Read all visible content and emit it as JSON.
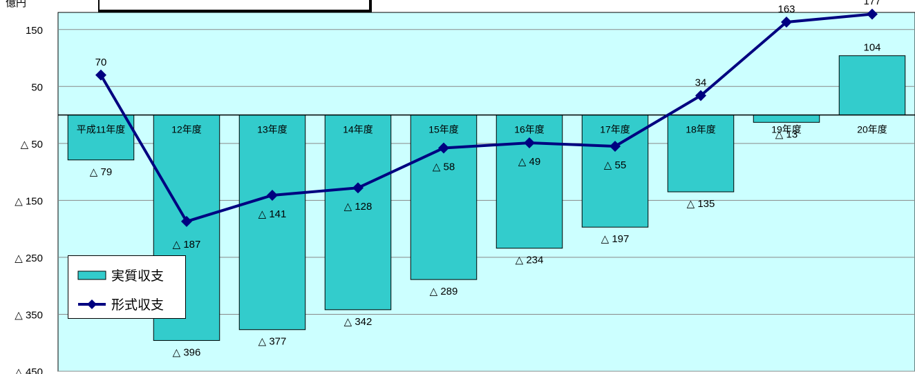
{
  "unit_label": "億円",
  "chart_data": {
    "type": "bar+line",
    "categories": [
      "平成11年度",
      "12年度",
      "13年度",
      "14年度",
      "15年度",
      "16年度",
      "17年度",
      "18年度",
      "19年度",
      "20年度"
    ],
    "series": [
      {
        "name": "実質収支",
        "type": "bar",
        "color": "#33cccc",
        "values": [
          -79,
          -396,
          -377,
          -342,
          -289,
          -234,
          -197,
          -135,
          -13,
          104
        ],
        "labels": [
          "△ 79",
          "△ 396",
          "△ 377",
          "△ 342",
          "△ 289",
          "△ 234",
          "△ 197",
          "△ 135",
          "△ 13",
          "104"
        ]
      },
      {
        "name": "形式収支",
        "type": "line",
        "color": "#000080",
        "values": [
          70,
          -187,
          -141,
          -128,
          -58,
          -49,
          -55,
          34,
          163,
          177
        ],
        "labels": [
          "70",
          "△ 187",
          "△ 141",
          "△ 128",
          "△ 58",
          "△ 49",
          "△ 55",
          "34",
          "163",
          "177"
        ]
      }
    ],
    "ylim": [
      -450,
      180
    ],
    "yticks": [
      150,
      50,
      -50,
      -150,
      -250,
      -350,
      -450
    ],
    "ytick_labels": [
      "150",
      "50",
      "△ 50",
      "△ 150",
      "△ 250",
      "△ 350",
      "△ 450"
    ],
    "plot_background": "#ccffff",
    "grid": true,
    "legend_position": "bottom-left"
  }
}
